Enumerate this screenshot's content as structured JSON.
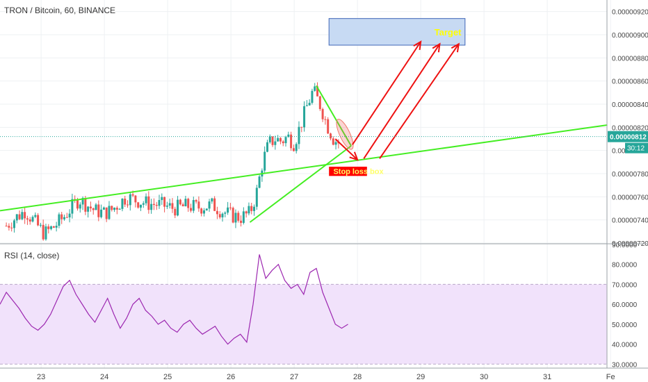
{
  "header": {
    "symbol_label": "TRON / Bitcoin, 60, BINANCE"
  },
  "rsi": {
    "label": "RSI (14, close)"
  },
  "colors": {
    "up": "#26a69a",
    "down": "#ef5350",
    "trend": "#44ee22",
    "arrow": "#ee1111",
    "rsi_line": "#9c27b0",
    "rsi_band": "#f1e2fb",
    "target_fill": "#c7daf3",
    "target_border": "#3f66b7",
    "stop": "#ff0000",
    "target_text": "#ffff00"
  },
  "annotations": {
    "target": "Target",
    "stop_loss": "Stop loss box"
  },
  "chart_data": [
    {
      "type": "candlestick",
      "title": "TRON / Bitcoin, 60, BINANCE",
      "x_ticks": [
        "23",
        "24",
        "25",
        "26",
        "27",
        "28",
        "29",
        "30",
        "31",
        "Fe"
      ],
      "y_ticks": [
        "0.00000920",
        "0.00000900",
        "0.00000880",
        "0.00000860",
        "0.00000840",
        "0.00000820",
        "0.00000800",
        "0.00000780",
        "0.00000760",
        "0.00000740",
        "0.00000720"
      ],
      "ylim": [
        7.2e-06,
        9.3e-06
      ],
      "last_price": "0.00000812",
      "countdown": "30:12",
      "close_path": [
        [
          22.45,
          7.35e-06
        ],
        [
          22.6,
          7.42e-06
        ],
        [
          22.75,
          7.48e-06
        ],
        [
          22.9,
          7.38e-06
        ],
        [
          23.05,
          7.28e-06
        ],
        [
          23.2,
          7.34e-06
        ],
        [
          23.35,
          7.42e-06
        ],
        [
          23.5,
          7.52e-06
        ],
        [
          23.6,
          7.58e-06
        ],
        [
          23.7,
          7.54e-06
        ],
        [
          23.85,
          7.48e-06
        ],
        [
          24.0,
          7.46e-06
        ],
        [
          24.1,
          7.48e-06
        ],
        [
          24.25,
          7.55e-06
        ],
        [
          24.35,
          7.6e-06
        ],
        [
          24.5,
          7.57e-06
        ],
        [
          24.7,
          7.54e-06
        ],
        [
          24.9,
          7.53e-06
        ],
        [
          25.1,
          7.5e-06
        ],
        [
          25.3,
          7.52e-06
        ],
        [
          25.5,
          7.51e-06
        ],
        [
          25.7,
          7.53e-06
        ],
        [
          25.85,
          7.48e-06
        ],
        [
          26.0,
          7.44e-06
        ],
        [
          26.15,
          7.42e-06
        ],
        [
          26.3,
          7.46e-06
        ],
        [
          26.4,
          7.62e-06
        ],
        [
          26.5,
          7.9e-06
        ],
        [
          26.6,
          8.06e-06
        ],
        [
          26.7,
          8.1e-06
        ],
        [
          26.8,
          8.08e-06
        ],
        [
          26.9,
          8.12e-06
        ],
        [
          27.0,
          8.06e-06
        ],
        [
          27.1,
          8.22e-06
        ],
        [
          27.2,
          8.38e-06
        ],
        [
          27.3,
          8.52e-06
        ],
        [
          27.42,
          8.38e-06
        ],
        [
          27.52,
          8.22e-06
        ],
        [
          27.62,
          8.1e-06
        ],
        [
          27.72,
          8.06e-06
        ]
      ],
      "annotations": {
        "target_zone": {
          "label": "Target",
          "x": [
            27.55,
            29.7
          ],
          "y": [
            8.91e-06,
            9.14e-06
          ]
        },
        "stop_loss_zone": {
          "label": "Stop loss box",
          "x": [
            27.55,
            28.15
          ],
          "y": [
            7.78e-06,
            7.86e-06
          ]
        },
        "trend_lines": [
          {
            "from": [
              22.35,
              7.48e-06
            ],
            "to": [
              31.95,
              8.22e-06
            ]
          },
          {
            "from": [
              26.3,
              7.38e-06
            ],
            "to": [
              27.9,
              8.04e-06
            ]
          },
          {
            "from": [
              27.35,
              8.56e-06
            ],
            "to": [
              27.9,
              8.04e-06
            ]
          }
        ],
        "arrows": [
          {
            "from": [
              27.92,
              8.05e-06
            ],
            "to": [
              29.0,
              8.94e-06
            ]
          },
          {
            "from": [
              28.1,
              7.93e-06
            ],
            "to": [
              29.3,
              8.92e-06
            ]
          },
          {
            "from": [
              28.35,
              7.93e-06
            ],
            "to": [
              29.6,
              8.92e-06
            ]
          },
          {
            "from": [
              27.65,
              8.1e-06
            ],
            "to": [
              28.0,
              7.92e-06
            ]
          }
        ],
        "ellipse": {
          "center": [
            27.8,
            8.14e-06
          ],
          "radius_x": 0.26,
          "radius_y": 4.4e-08,
          "angle_deg": -25
        }
      }
    },
    {
      "type": "line",
      "title": "RSI (14, close)",
      "y_ticks": [
        "90.0000",
        "80.0000",
        "70.0000",
        "60.0000",
        "50.0000",
        "40.0000",
        "30.0000"
      ],
      "ylim": [
        28,
        90
      ],
      "band": [
        30,
        70
      ],
      "x": [
        22.35,
        22.45,
        22.55,
        22.65,
        22.75,
        22.85,
        22.95,
        23.05,
        23.15,
        23.25,
        23.35,
        23.45,
        23.55,
        23.65,
        23.75,
        23.85,
        23.95,
        24.05,
        24.15,
        24.25,
        24.35,
        24.45,
        24.55,
        24.65,
        24.75,
        24.85,
        24.95,
        25.05,
        25.15,
        25.25,
        25.35,
        25.45,
        25.55,
        25.65,
        25.75,
        25.85,
        25.95,
        26.05,
        26.15,
        26.25,
        26.35,
        26.45,
        26.55,
        26.65,
        26.75,
        26.85,
        26.95,
        27.05,
        27.15,
        27.25,
        27.35,
        27.45,
        27.55,
        27.65,
        27.75,
        27.85
      ],
      "values": [
        60,
        66,
        62,
        58,
        53,
        49,
        47,
        50,
        55,
        62,
        69,
        72,
        65,
        60,
        55,
        51,
        57,
        63,
        55,
        48,
        53,
        60,
        63,
        57,
        54,
        50,
        52,
        48,
        46,
        50,
        52,
        48,
        45,
        47,
        49,
        44,
        40,
        43,
        45,
        41,
        60,
        85,
        73,
        77,
        80,
        72,
        68,
        70,
        65,
        76,
        78,
        66,
        58,
        50,
        48,
        50
      ]
    }
  ]
}
